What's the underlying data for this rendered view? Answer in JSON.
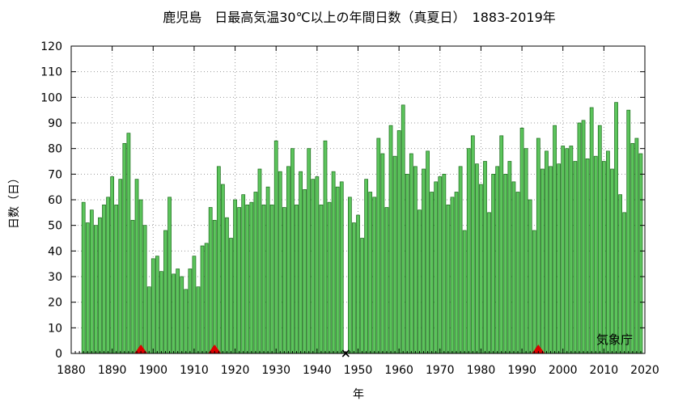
{
  "chart_data": {
    "type": "bar",
    "title": "鹿児島　日最高気温30℃以上の年間日数（真夏日）　1883-2019年",
    "xlabel": "年",
    "ylabel": "日数（日）",
    "source_label": "気象庁",
    "xlim": [
      1880,
      2020
    ],
    "ylim": [
      0,
      120
    ],
    "x_ticks": [
      1880,
      1890,
      1900,
      1910,
      1920,
      1930,
      1940,
      1950,
      1960,
      1970,
      1980,
      1990,
      2000,
      2010,
      2020
    ],
    "y_ticks": [
      0,
      10,
      20,
      30,
      40,
      50,
      60,
      70,
      80,
      90,
      100,
      110,
      120
    ],
    "grid": true,
    "bar_color": "#5cc45c",
    "bar_edge_color": "#1a6b1a",
    "series": [
      {
        "x": [
          1883,
          1884,
          1885,
          1886,
          1887,
          1888,
          1889,
          1890,
          1891,
          1892,
          1893,
          1894,
          1895,
          1896,
          1897,
          1898,
          1899,
          1900,
          1901,
          1902,
          1903,
          1904,
          1905,
          1906,
          1907,
          1908,
          1909,
          1910,
          1911,
          1912,
          1913,
          1914,
          1915,
          1916,
          1917,
          1918,
          1919,
          1920,
          1921,
          1922,
          1923,
          1924,
          1925,
          1926,
          1927,
          1928,
          1929,
          1930,
          1931,
          1932,
          1933,
          1934,
          1935,
          1936,
          1937,
          1938,
          1939,
          1940,
          1941,
          1942,
          1943,
          1944,
          1945,
          1946,
          1947,
          1948,
          1949,
          1950,
          1951,
          1952,
          1953,
          1954,
          1955,
          1956,
          1957,
          1958,
          1959,
          1960,
          1961,
          1962,
          1963,
          1964,
          1965,
          1966,
          1967,
          1968,
          1969,
          1970,
          1971,
          1972,
          1973,
          1974,
          1975,
          1976,
          1977,
          1978,
          1979,
          1980,
          1981,
          1982,
          1983,
          1984,
          1985,
          1986,
          1987,
          1988,
          1989,
          1990,
          1991,
          1992,
          1993,
          1994,
          1995,
          1996,
          1997,
          1998,
          1999,
          2000,
          2001,
          2002,
          2003,
          2004,
          2005,
          2006,
          2007,
          2008,
          2009,
          2010,
          2011,
          2012,
          2013,
          2014,
          2015,
          2016,
          2017,
          2018,
          2019
        ],
        "values": [
          59,
          51,
          56,
          50,
          53,
          58,
          61,
          69,
          58,
          68,
          82,
          86,
          52,
          68,
          60,
          50,
          26,
          37,
          38,
          32,
          48,
          61,
          31,
          33,
          30,
          25,
          33,
          38,
          26,
          42,
          43,
          57,
          52,
          73,
          66,
          53,
          45,
          60,
          57,
          62,
          58,
          59,
          63,
          72,
          58,
          65,
          58,
          83,
          71,
          57,
          73,
          80,
          58,
          71,
          64,
          80,
          68,
          69,
          58,
          83,
          59,
          71,
          65,
          67,
          null,
          61,
          51,
          54,
          45,
          68,
          63,
          61,
          84,
          78,
          57,
          89,
          77,
          87,
          97,
          70,
          78,
          73,
          56,
          72,
          79,
          63,
          67,
          69,
          70,
          58,
          61,
          63,
          73,
          48,
          80,
          85,
          74,
          66,
          75,
          55,
          70,
          73,
          85,
          70,
          75,
          67,
          63,
          88,
          80,
          60,
          48,
          84,
          72,
          79,
          73,
          89,
          74,
          81,
          80,
          81,
          75,
          90,
          91,
          76,
          96,
          77,
          89,
          75,
          79,
          72,
          98,
          62,
          55,
          95,
          82,
          84,
          78
        ]
      }
    ],
    "markers": [
      {
        "type": "relocation",
        "symbol": "triangle",
        "x": 1897,
        "color": "#dd0000"
      },
      {
        "type": "relocation",
        "symbol": "triangle",
        "x": 1915,
        "color": "#dd0000"
      },
      {
        "type": "relocation",
        "symbol": "triangle",
        "x": 1994,
        "color": "#dd0000"
      },
      {
        "type": "missing",
        "symbol": "cross",
        "x": 1947,
        "color": "#000000"
      }
    ]
  }
}
